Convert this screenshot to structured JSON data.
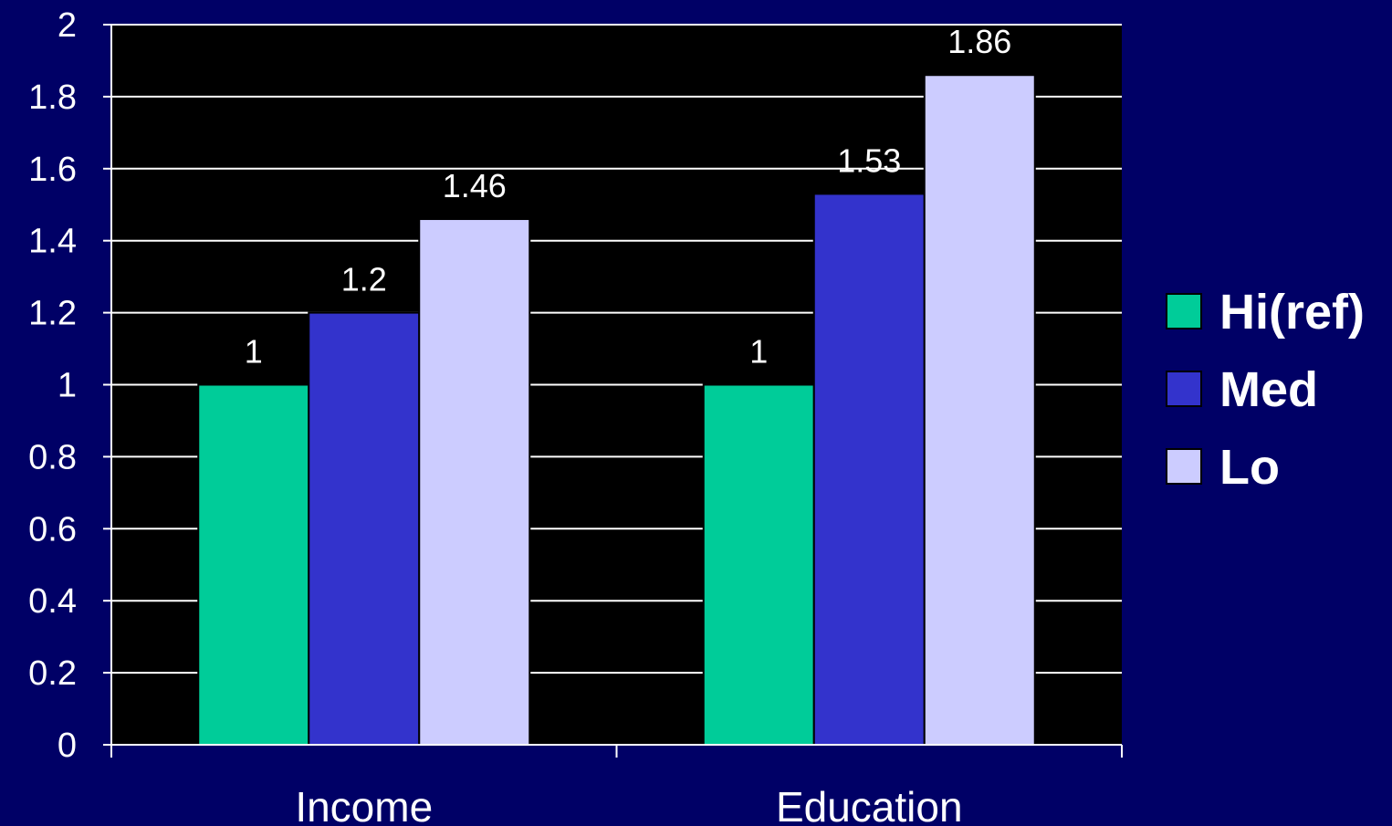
{
  "chart_data": {
    "type": "bar",
    "categories": [
      "Income",
      "Education"
    ],
    "series": [
      {
        "name": "Hi(ref)",
        "values": [
          1,
          1
        ],
        "color": "#00CC99"
      },
      {
        "name": "Med",
        "values": [
          1.2,
          1.53
        ],
        "color": "#3333CC"
      },
      {
        "name": "Lo",
        "values": [
          1.46,
          1.86
        ],
        "color": "#CCCCFF"
      }
    ],
    "data_labels": [
      [
        "1",
        "1"
      ],
      [
        "1.2",
        "1.53"
      ],
      [
        "1.46",
        "1.86"
      ]
    ],
    "yticks": [
      "0",
      "0.2",
      "0.4",
      "0.6",
      "0.8",
      "1",
      "1.2",
      "1.4",
      "1.6",
      "1.8",
      "2"
    ],
    "ylim": [
      0,
      2
    ],
    "title": "",
    "xlabel": "",
    "ylabel": "",
    "grid": true,
    "legend": "right",
    "plot_background": "#000000",
    "page_background": "#000066",
    "text_color": "#FFFFFF"
  }
}
